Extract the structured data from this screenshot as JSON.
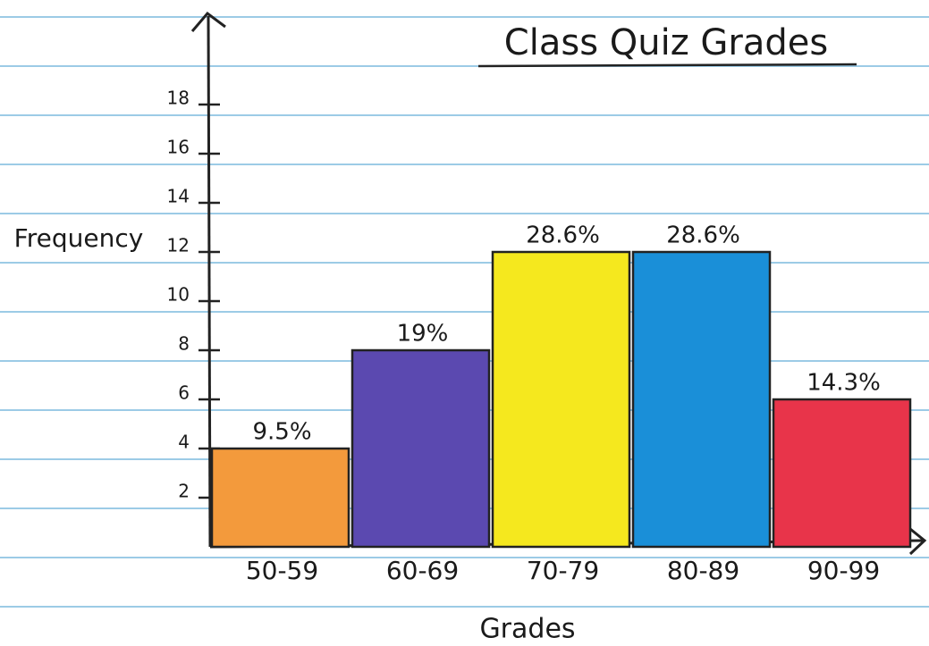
{
  "chart_data": {
    "type": "bar",
    "title": "Class Quiz Grades",
    "x_label": "Grades",
    "y_label": "Frequency",
    "categories": [
      "50-59",
      "60-69",
      "70-79",
      "80-89",
      "90-99"
    ],
    "values": [
      4,
      8,
      12,
      12,
      6
    ],
    "percent_labels": [
      "9.5%",
      "19%",
      "28.6%",
      "28.6%",
      "14.3%"
    ],
    "colors": [
      "#f39a3c",
      "#5b49b0",
      "#f5e81e",
      "#1a8fd8",
      "#e8344a"
    ],
    "ylim": [
      0,
      21
    ],
    "yticks": [
      2,
      4,
      6,
      8,
      10,
      12,
      14,
      16,
      18
    ]
  }
}
